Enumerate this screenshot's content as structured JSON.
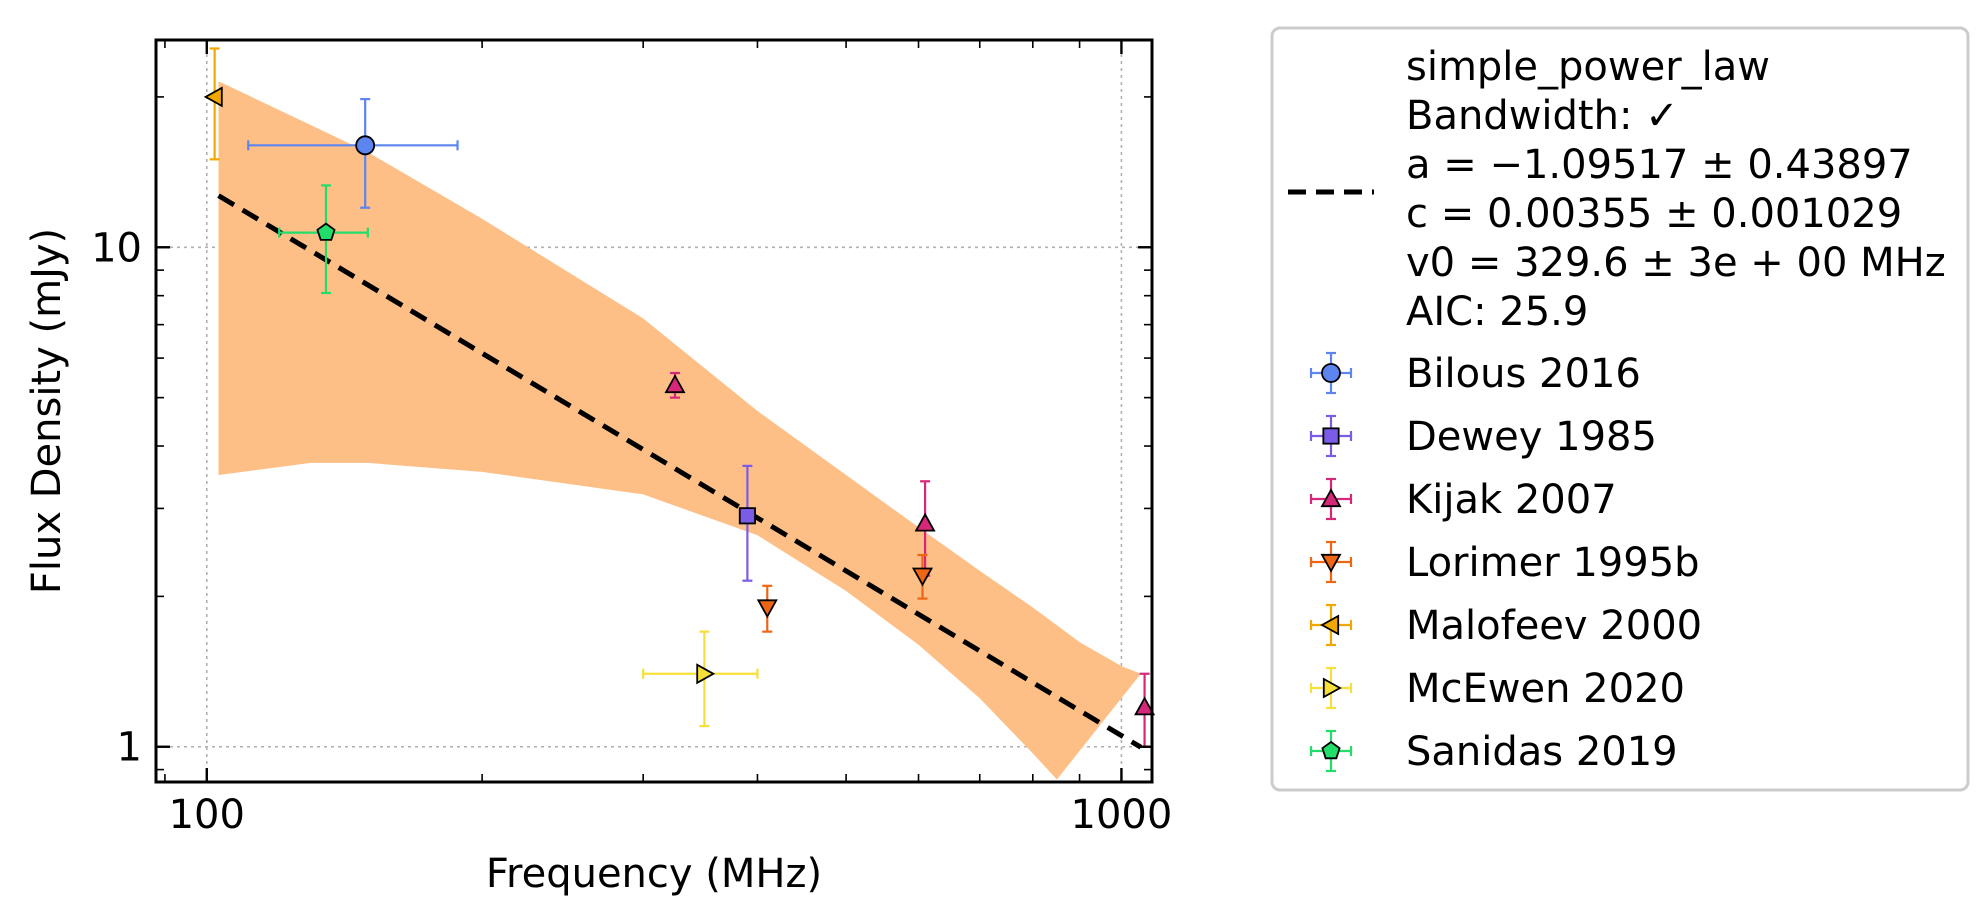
{
  "chart_data": {
    "type": "scatter",
    "xlabel": "Frequency (MHz)",
    "ylabel": "Flux Density (mJy)",
    "xscale": "log",
    "yscale": "log",
    "xlim": [
      88,
      1080
    ],
    "ylim": [
      0.85,
      26
    ],
    "xticks": [
      100,
      1000
    ],
    "xtick_labels": [
      "100",
      "1000"
    ],
    "yticks": [
      1,
      10
    ],
    "ytick_labels": [
      "1",
      "10"
    ],
    "grid": true,
    "legend_position": "outside-right",
    "fit": {
      "model": "simple_power_law",
      "style": "dashed",
      "color": "#000000",
      "band_color": "#fdbf86",
      "a": -1.09517,
      "c": 0.00355,
      "v0": 329.6,
      "x_range": [
        103,
        1050
      ],
      "label_lines": [
        "simple_power_law",
        "Bandwidth: ✓",
        "a = −1.09517 ± 0.43897",
        "c = 0.00355 ± 0.001029",
        "v0 = 329.6 ± 3e + 00 MHz",
        "AIC: 25.9"
      ],
      "band_upper": [
        [
          103,
          21.5
        ],
        [
          150,
          15.5
        ],
        [
          200,
          11.4
        ],
        [
          300,
          7.2
        ],
        [
          400,
          4.7
        ],
        [
          500,
          3.5
        ],
        [
          600,
          2.75
        ],
        [
          700,
          2.25
        ],
        [
          800,
          1.9
        ],
        [
          900,
          1.62
        ],
        [
          1000,
          1.45
        ],
        [
          1050,
          1.4
        ]
      ],
      "band_lower": [
        [
          103,
          3.5
        ],
        [
          130,
          3.7
        ],
        [
          150,
          3.7
        ],
        [
          200,
          3.55
        ],
        [
          300,
          3.2
        ],
        [
          400,
          2.65
        ],
        [
          500,
          2.05
        ],
        [
          600,
          1.6
        ],
        [
          700,
          1.25
        ],
        [
          800,
          0.97
        ],
        [
          850,
          0.86
        ]
      ]
    },
    "series": [
      {
        "name": "Bilous 2016",
        "marker": "circle",
        "color": "#5c85f0",
        "points": [
          {
            "x": 149,
            "y": 16.0,
            "xerr": [
              38,
              39
            ],
            "yerr": [
              4.0,
              3.8
            ]
          }
        ]
      },
      {
        "name": "Dewey 1985",
        "marker": "square",
        "color": "#7b5ce6",
        "points": [
          {
            "x": 390,
            "y": 2.9,
            "xerr": [
              0,
              0
            ],
            "yerr": [
              0.75,
              0.75
            ]
          }
        ]
      },
      {
        "name": "Kijak 2007",
        "marker": "triangle-up",
        "color": "#d6287a",
        "points": [
          {
            "x": 325,
            "y": 5.3,
            "xerr": [
              0,
              0
            ],
            "yerr": [
              0.3,
              0.3
            ]
          },
          {
            "x": 610,
            "y": 2.8,
            "xerr": [
              0,
              0
            ],
            "yerr": [
              0.6,
              0.6
            ]
          },
          {
            "x": 1060,
            "y": 1.2,
            "xerr": [
              0,
              0
            ],
            "yerr": [
              0.2,
              0.2
            ]
          }
        ]
      },
      {
        "name": "Lorimer 1995b",
        "marker": "triangle-down",
        "color": "#ee6514",
        "points": [
          {
            "x": 410,
            "y": 1.9,
            "xerr": [
              0,
              0
            ],
            "yerr": [
              0.2,
              0.2
            ]
          },
          {
            "x": 606,
            "y": 2.2,
            "xerr": [
              0,
              0
            ],
            "yerr": [
              0.22,
              0.22
            ]
          }
        ]
      },
      {
        "name": "Malofeev 2000",
        "marker": "triangle-left",
        "color": "#f0a800",
        "points": [
          {
            "x": 102,
            "y": 20.0,
            "xerr": [
              0,
              0
            ],
            "yerr": [
              5.0,
              5.0
            ]
          }
        ]
      },
      {
        "name": "McEwen 2020",
        "marker": "triangle-right",
        "color": "#f7df3a",
        "points": [
          {
            "x": 350,
            "y": 1.4,
            "xerr": [
              50,
              50
            ],
            "yerr": [
              0.3,
              0.3
            ]
          }
        ]
      },
      {
        "name": "Sanidas 2019",
        "marker": "pentagon",
        "color": "#22dd6a",
        "points": [
          {
            "x": 135,
            "y": 10.7,
            "xerr": [
              15,
              15
            ],
            "yerr": [
              2.6,
              2.6
            ]
          }
        ]
      }
    ]
  }
}
